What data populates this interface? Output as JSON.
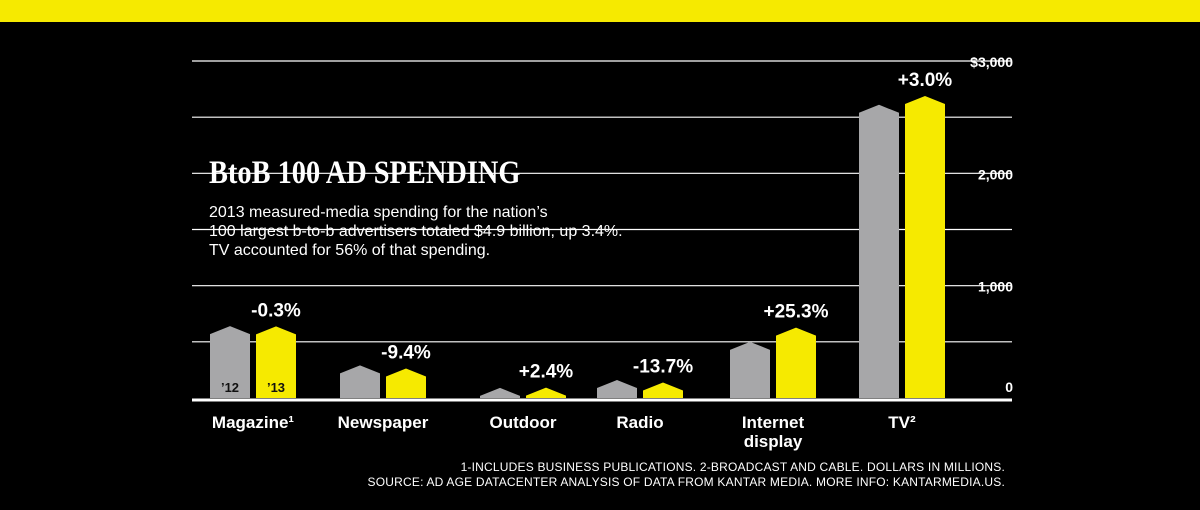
{
  "header": {
    "title": "BtoB 100 AD SPENDING",
    "subtitle_lines": [
      "2013 measured-media spending for the nation’s",
      "100 largest b-to-b advertisers totaled $4.9 billion, up 3.4%.",
      "TV accounted for 56% of that spending."
    ]
  },
  "footnotes": [
    "1-INCLUDES BUSINESS PUBLICATIONS. 2-BROADCAST AND CABLE. DOLLARS IN MILLIONS.",
    "SOURCE: AD AGE DATACENTER ANALYSIS OF DATA FROM KANTAR MEDIA. MORE INFO: KANTARMEDIA.US."
  ],
  "colors": {
    "background": "#000000",
    "accent": "#f6ea00",
    "series_2012": "#a7a7a9",
    "series_2013": "#f6ea00",
    "text": "#ffffff"
  },
  "chart_data": {
    "type": "bar",
    "title": "BtoB 100 AD SPENDING",
    "units": "Dollars in millions",
    "categories": [
      "Magazine¹",
      "Newspaper",
      "Outdoor",
      "Radio",
      "Internet display",
      "TV²"
    ],
    "category_lines": [
      [
        "Magazine¹"
      ],
      [
        "Newspaper"
      ],
      [
        "Outdoor"
      ],
      [
        "Radio"
      ],
      [
        "Internet",
        "display"
      ],
      [
        "TV²"
      ]
    ],
    "series": [
      {
        "name": "’12",
        "values": [
          640,
          290,
          90,
          160,
          500,
          2610
        ]
      },
      {
        "name": "’13",
        "values": [
          638,
          263,
          92,
          138,
          626,
          2688
        ]
      }
    ],
    "change_labels": [
      "-0.3%",
      "-9.4%",
      "+2.4%",
      "-13.7%",
      "+25.3%",
      "+3.0%"
    ],
    "y_ticks": [
      0,
      1000,
      2000,
      3000
    ],
    "y_tick_labels": [
      "0",
      "1,000",
      "2,000",
      "$3,000"
    ],
    "ylim": [
      0,
      3000
    ],
    "grid": true,
    "legend_placement": "inside first category bars"
  }
}
